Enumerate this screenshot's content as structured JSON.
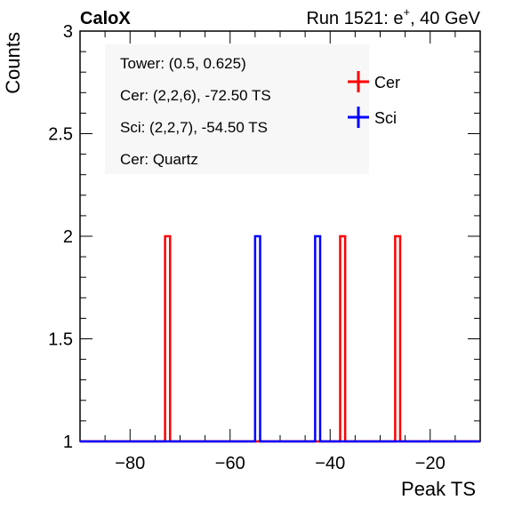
{
  "header": {
    "left": "CaloX",
    "right_prefix": "Run 1521: e",
    "right_sup": "+",
    "right_suffix": ", 40 GeV"
  },
  "info_box": {
    "lines": [
      "Tower: (0.5, 0.625)",
      "Cer: (2,2,6), -72.50 TS",
      "Sci: (2,2,7), -54.50 TS",
      "Cer: Quartz"
    ]
  },
  "legend": {
    "position": "top-right",
    "entries": [
      {
        "label": "Cer",
        "color": "#ff0000"
      },
      {
        "label": "Sci",
        "color": "#0000ff"
      }
    ]
  },
  "chart_data": {
    "type": "line",
    "style": "step-histogram",
    "title": "",
    "xlabel": "Peak TS",
    "ylabel": "Counts",
    "xlim": [
      -90,
      -10
    ],
    "ylim": [
      1,
      3
    ],
    "x_ticks": [
      -80,
      -60,
      -40,
      -20
    ],
    "x_tick_labels": [
      "−80",
      "−60",
      "−40",
      "−20"
    ],
    "y_ticks": [
      1,
      1.5,
      2,
      2.5,
      3
    ],
    "y_tick_labels": [
      "1",
      "1.5",
      "2",
      "2.5",
      "3"
    ],
    "grid": false,
    "series": [
      {
        "name": "Cer",
        "color": "#ff0000",
        "baseline": 1,
        "bins": [
          {
            "x_low": -73,
            "x_high": -72,
            "count": 2
          },
          {
            "x_low": -38,
            "x_high": -37,
            "count": 2
          },
          {
            "x_low": -27,
            "x_high": -26,
            "count": 2
          }
        ]
      },
      {
        "name": "Sci",
        "color": "#0000ff",
        "baseline": 1,
        "bins": [
          {
            "x_low": -55,
            "x_high": -54,
            "count": 2
          },
          {
            "x_low": -43,
            "x_high": -42,
            "count": 2
          }
        ]
      }
    ]
  }
}
